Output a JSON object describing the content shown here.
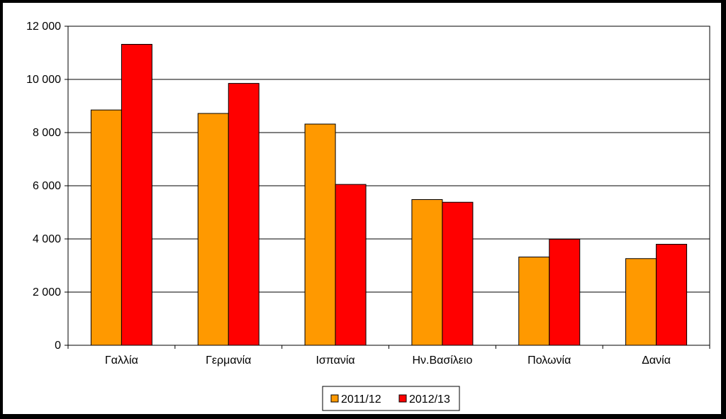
{
  "chart_data": {
    "type": "bar",
    "categories": [
      "Γαλλία",
      "Γερμανία",
      "Ισπανία",
      "Ην.Βασίλειο",
      "Πολωνία",
      "Δανία"
    ],
    "series": [
      {
        "name": "2011/12",
        "color": "#FF9900",
        "values": [
          8850,
          8720,
          8320,
          5480,
          3320,
          3260
        ]
      },
      {
        "name": "2012/13",
        "color": "#FF0000",
        "values": [
          11320,
          9850,
          6050,
          5380,
          3990,
          3800
        ]
      }
    ],
    "ylim": [
      0,
      12000
    ],
    "yticks": [
      0,
      2000,
      4000,
      6000,
      8000,
      10000,
      12000
    ],
    "ytick_labels": [
      "0",
      "2 000",
      "4 000",
      "6 000",
      "8 000",
      "10 000",
      "12 000"
    ],
    "title": "",
    "xlabel": "",
    "ylabel": "",
    "grid": true,
    "legend_position": "bottom"
  }
}
